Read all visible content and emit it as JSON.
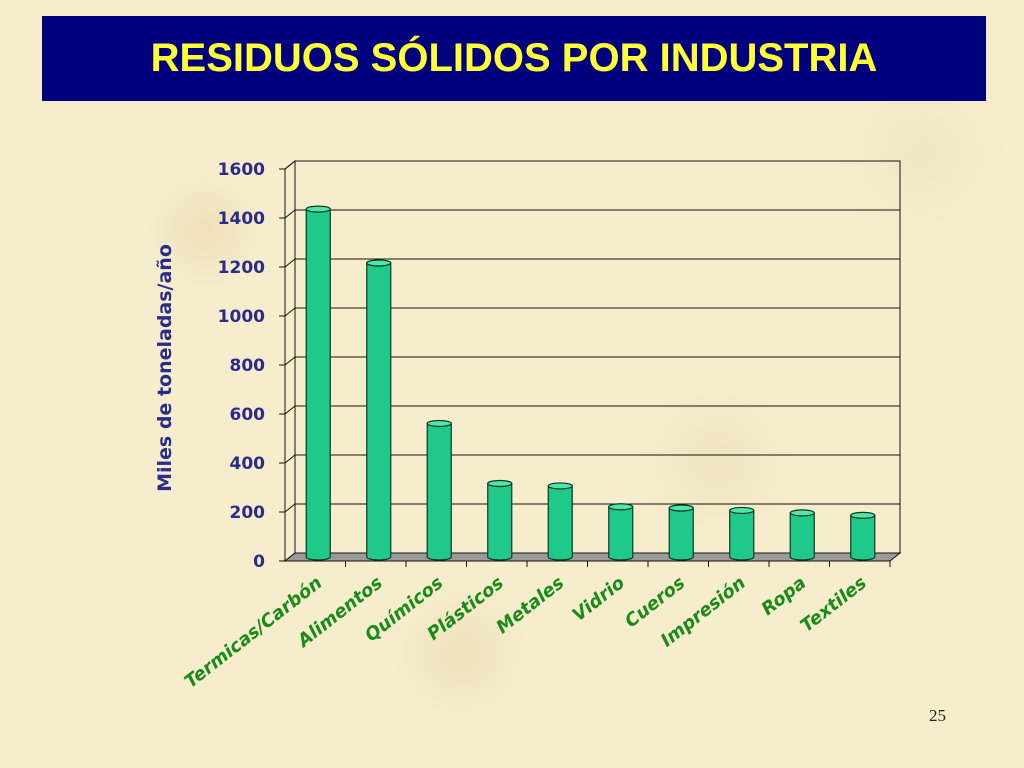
{
  "slide": {
    "title": "RESIDUOS SÓLIDOS POR INDUSTRIA",
    "page_number": "25"
  },
  "colors": {
    "title_bg": "#00007f",
    "title_text": "#ffff33",
    "axis_text": "#2b2b8c",
    "category_text": "#1a8a1a",
    "bar_fill": "#1fc98a",
    "bar_top": "#4fe6a8"
  },
  "chart_data": {
    "type": "bar",
    "ylabel": "Miles de toneladas/año",
    "categories": [
      "Termicas/Carbón",
      "Alimentos",
      "Químicos",
      "Plásticos",
      "Metales",
      "Vidrio",
      "Cueros",
      "Impresión",
      "Ropa",
      "Textiles"
    ],
    "values": [
      1420,
      1200,
      545,
      300,
      290,
      205,
      200,
      190,
      180,
      170
    ],
    "ylim": [
      0,
      1600
    ],
    "yticks": [
      0,
      200,
      400,
      600,
      800,
      1000,
      1200,
      1400,
      1600
    ],
    "grid": true,
    "legend": "none"
  }
}
